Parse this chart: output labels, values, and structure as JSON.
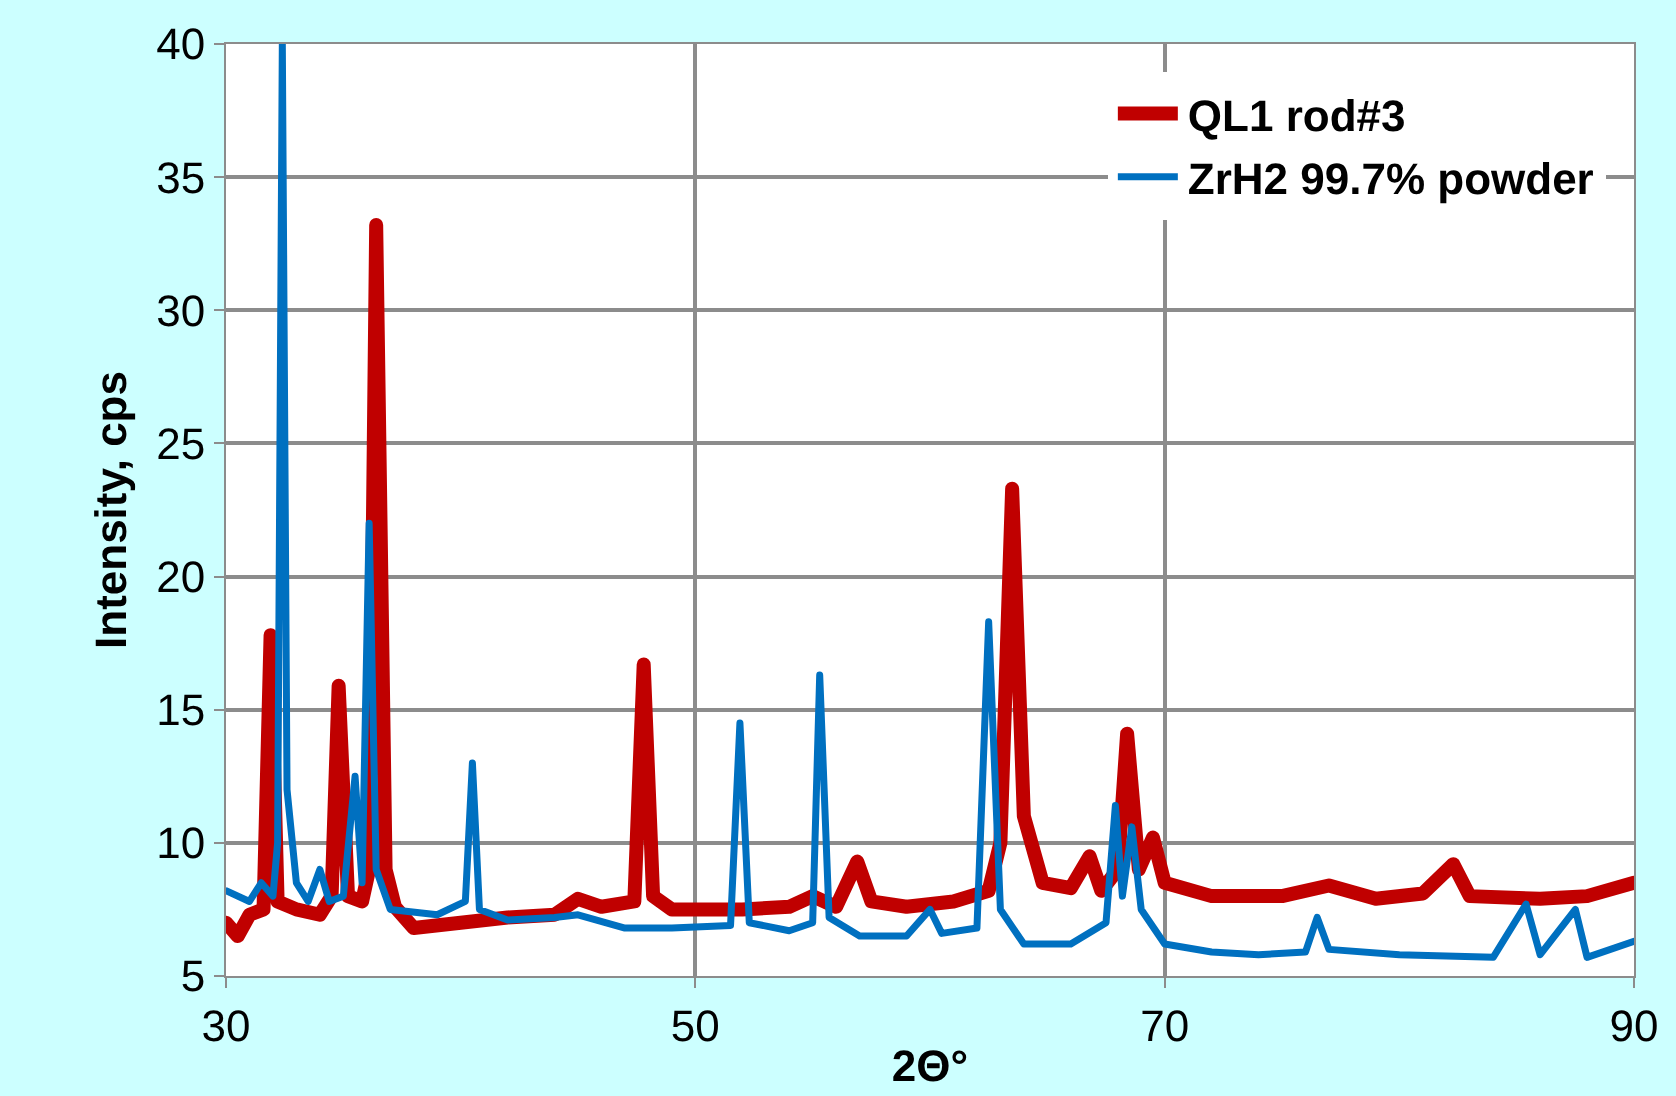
{
  "chart_data": {
    "type": "line",
    "xlabel": "2Θ°",
    "ylabel": "Intensity, cps",
    "xlim": [
      30,
      90
    ],
    "xticks": [
      30,
      50,
      70,
      90
    ],
    "ylim": [
      5,
      40
    ],
    "yticks": [
      5,
      10,
      15,
      20,
      25,
      30,
      35,
      40
    ],
    "grid": true,
    "legend": "top right",
    "marker": "none",
    "line_style": "solid",
    "series": [
      {
        "name": "QL1 rod#3",
        "color": "#c00000",
        "x": [
          30,
          30.5,
          31,
          31.6,
          31.9,
          32.2,
          33,
          34,
          34.5,
          34.8,
          35.2,
          35.8,
          36.1,
          36.4,
          36.8,
          37.2,
          38,
          40,
          42,
          44,
          45,
          46,
          47.4,
          47.8,
          48.2,
          49,
          52,
          54,
          55,
          56,
          56.9,
          57.5,
          59,
          61,
          62.5,
          63,
          63.5,
          64,
          64.8,
          66,
          66.8,
          67.3,
          68,
          68.4,
          68.9,
          69.5,
          70,
          72,
          75,
          77,
          79,
          81,
          82.3,
          83,
          86,
          88,
          90
        ],
        "values": [
          7,
          6.5,
          7.3,
          7.5,
          17.8,
          7.8,
          7.5,
          7.3,
          8,
          15.9,
          8,
          7.8,
          9,
          33.2,
          9,
          7.6,
          6.8,
          7,
          7.2,
          7.3,
          7.9,
          7.6,
          7.8,
          16.7,
          8,
          7.5,
          7.5,
          7.6,
          8,
          7.6,
          9.3,
          7.8,
          7.6,
          7.8,
          8.2,
          10,
          23.3,
          11,
          8.5,
          8.3,
          9.5,
          8.2,
          9,
          14.1,
          9,
          10.2,
          8.5,
          8,
          8,
          8.4,
          7.9,
          8.1,
          9.2,
          8,
          7.9,
          8,
          8.5
        ]
      },
      {
        "name": "ZrH2 99.7% powder",
        "color": "#0070c0",
        "x": [
          30,
          31,
          31.5,
          32,
          32.2,
          32.4,
          32.6,
          33,
          33.5,
          34,
          34.4,
          35,
          35.5,
          35.8,
          36.1,
          36.4,
          37,
          39,
          40.2,
          40.5,
          40.8,
          42,
          44,
          45,
          47,
          49,
          51.5,
          51.9,
          52.3,
          54,
          55,
          55.3,
          55.7,
          57,
          59,
          60,
          60.5,
          62,
          62.5,
          63,
          64,
          66,
          67.5,
          67.9,
          68.2,
          68.6,
          69,
          70,
          72,
          74,
          76,
          76.5,
          77,
          80,
          84,
          85.4,
          86,
          87.5,
          88,
          90
        ],
        "values": [
          8.2,
          7.8,
          8.5,
          8,
          10,
          40,
          12,
          8.5,
          7.8,
          9,
          7.8,
          8,
          12.5,
          8.5,
          22,
          9,
          7.5,
          7.3,
          7.8,
          13,
          7.5,
          7.1,
          7.2,
          7.3,
          6.8,
          6.8,
          6.9,
          14.5,
          7,
          6.7,
          7,
          16.3,
          7.2,
          6.5,
          6.5,
          7.5,
          6.6,
          6.8,
          18.3,
          7.5,
          6.2,
          6.2,
          7,
          11.4,
          8,
          10.6,
          7.5,
          6.2,
          5.9,
          5.8,
          5.9,
          7.2,
          6,
          5.8,
          5.7,
          7.7,
          5.8,
          7.5,
          5.7,
          6.3
        ]
      }
    ]
  }
}
